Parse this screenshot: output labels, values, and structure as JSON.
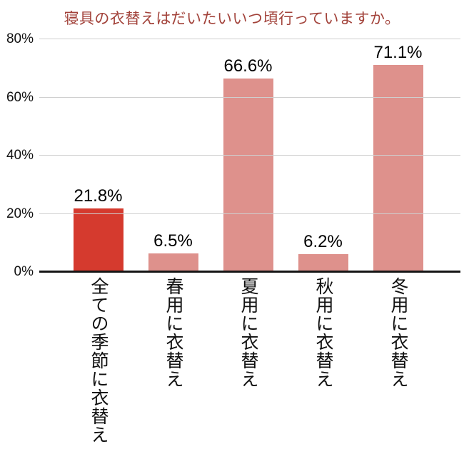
{
  "title": "寝具の衣替えはだいたいいつ頃行っていますか。",
  "colors": {
    "title_text": "#a2423a",
    "highlight_bar": "#d53a2e",
    "base_bar": "#de918c",
    "gridline": "#cfcfcf",
    "axis_line": "#151515",
    "label_text": "#000000"
  },
  "chart_data": {
    "type": "bar",
    "title": "寝具の衣替えはだいたいいつ頃行っていますか。",
    "categories": [
      "全ての季節に衣替え",
      "春用に衣替え",
      "夏用に衣替え",
      "秋用に衣替え",
      "冬用に衣替え"
    ],
    "values": [
      21.8,
      6.5,
      66.6,
      6.2,
      71.1
    ],
    "value_labels": [
      "21.8%",
      "6.5%",
      "66.6%",
      "6.2%",
      "71.1%"
    ],
    "bar_colors": [
      "#d53a2e",
      "#de918c",
      "#de918c",
      "#de918c",
      "#de918c"
    ],
    "ylim": [
      0,
      80
    ],
    "yticks": [
      0,
      20,
      40,
      60,
      80
    ],
    "ytick_labels": [
      "0%",
      "20%",
      "40%",
      "60%",
      "80%"
    ],
    "grid": true,
    "legend": false,
    "legend_position": "none",
    "xlabel": "",
    "ylabel": ""
  }
}
